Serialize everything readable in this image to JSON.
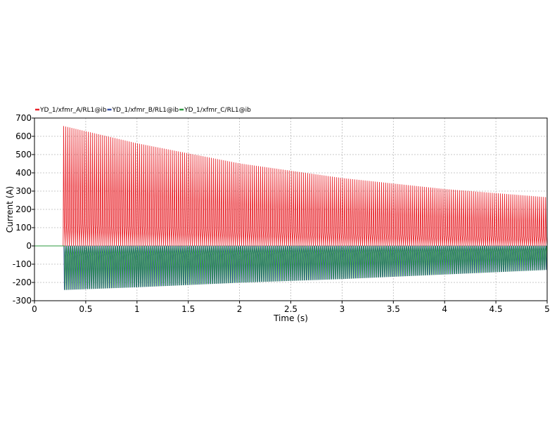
{
  "chart_data": {
    "type": "line",
    "title": "",
    "xlabel": "Time (s)",
    "ylabel": "Current (A)",
    "xlim": [
      0,
      5
    ],
    "ylim": [
      -300,
      700
    ],
    "x_ticks": [
      0,
      0.5,
      1,
      1.5,
      2,
      2.5,
      3,
      3.5,
      4,
      4.5,
      5
    ],
    "x_tick_labels": [
      "0",
      "0.5",
      "1",
      "1.5",
      "2",
      "2.5",
      "3",
      "3.5",
      "4",
      "4.5",
      "5"
    ],
    "y_ticks": [
      700,
      600,
      500,
      400,
      300,
      200,
      100,
      0,
      -100,
      -200,
      -300
    ],
    "y_tick_labels": [
      "700",
      "600",
      "500",
      "400",
      "300",
      "200",
      "100",
      "0",
      "-100",
      "-200",
      "-300"
    ],
    "grid": true,
    "legend_position": "top-left",
    "switch_time": 0.28,
    "frequency_hz": 50,
    "series": [
      {
        "name": "YD_1/xfmr_A/RL1@ib",
        "color": "#e8232a",
        "envelope_x": [
          0.28,
          1,
          2,
          3,
          4,
          5
        ],
        "envelope_max": [
          655,
          560,
          450,
          370,
          310,
          265
        ],
        "envelope_min": [
          0,
          0,
          0,
          0,
          0,
          0
        ]
      },
      {
        "name": "YD_1/xfmr_B/RL1@ib",
        "color": "#3a52a6",
        "envelope_x": [
          0.28,
          1,
          2,
          3,
          4,
          5
        ],
        "envelope_max": [
          0,
          0,
          0,
          0,
          0,
          0
        ],
        "envelope_min": [
          -240,
          -225,
          -200,
          -180,
          -155,
          -130
        ]
      },
      {
        "name": "YD_1/xfmr_C/RL1@ib",
        "color": "#2b9a3e",
        "envelope_x": [
          0.28,
          1,
          2,
          3,
          4,
          5
        ],
        "envelope_max": [
          0,
          0,
          0,
          0,
          0,
          0
        ],
        "envelope_min": [
          -240,
          -225,
          -200,
          -180,
          -155,
          -130
        ]
      }
    ]
  }
}
